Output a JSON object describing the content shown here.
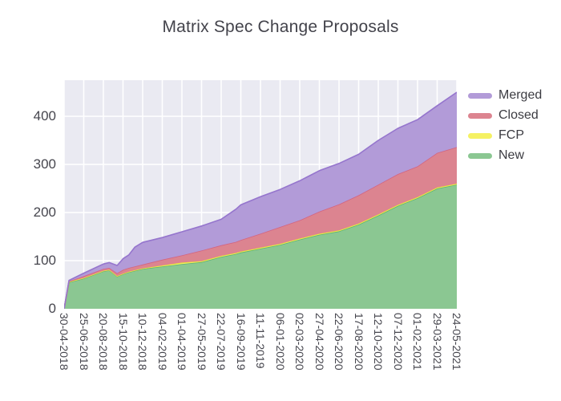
{
  "title": "Matrix Spec Change Proposals",
  "chart_data": {
    "type": "area",
    "stacked": true,
    "title": "Matrix Spec Change Proposals",
    "plot_bg": "#eaeaf2",
    "grid_color": "#ffffff",
    "grid": true,
    "legend_position": "outside-top-right",
    "xlabel": "",
    "ylabel": "",
    "xlim": [
      0,
      20
    ],
    "ylim": [
      0,
      475
    ],
    "yticks": [
      0,
      100,
      200,
      300,
      400
    ],
    "x_tick_labels": [
      "30-04-2018",
      "25-06-2018",
      "20-08-2018",
      "15-10-2018",
      "10-12-2018",
      "04-02-2019",
      "01-04-2019",
      "27-05-2019",
      "22-07-2019",
      "16-09-2019",
      "11-11-2019",
      "06-01-2020",
      "02-03-2020",
      "27-04-2020",
      "22-06-2020",
      "17-08-2020",
      "12-10-2020",
      "07-12-2020",
      "01-02-2021",
      "29-03-2021",
      "24-05-2021"
    ],
    "x": [
      0,
      0.25,
      1,
      2,
      2.3,
      2.7,
      3,
      3.3,
      3.6,
      4,
      5,
      6,
      7,
      8,
      8.75,
      9,
      10,
      11,
      12,
      13,
      14,
      15,
      16,
      17,
      18,
      19,
      20
    ],
    "series": [
      {
        "name": "New",
        "fill": "#8bc792",
        "line": "#5cb176",
        "values": [
          0,
          55,
          63,
          78,
          80,
          67,
          72,
          76,
          79,
          83,
          88,
          93,
          97,
          108,
          114,
          117,
          125,
          133,
          144,
          154,
          161,
          175,
          194,
          214,
          230,
          250,
          258
        ]
      },
      {
        "name": "FCP",
        "fill": "#f5f163",
        "line": "#e8e33a",
        "values": [
          0,
          1,
          1,
          1,
          1,
          1,
          1,
          1,
          1,
          1,
          2,
          3,
          2,
          2,
          2,
          2,
          2,
          2,
          2,
          2,
          2,
          2,
          2,
          2,
          2,
          2,
          2
        ]
      },
      {
        "name": "Closed",
        "fill": "#dc8490",
        "line": "#d36480",
        "values": [
          0,
          1,
          4,
          4,
          4,
          6,
          8,
          8,
          8,
          8,
          12,
          15,
          22,
          22,
          23,
          24,
          29,
          35,
          38,
          46,
          54,
          59,
          62,
          64,
          64,
          72,
          76
        ]
      },
      {
        "name": "Merged",
        "fill": "#b29bd8",
        "line": "#9575cd",
        "values": [
          0,
          2,
          6,
          10,
          11,
          16,
          23,
          27,
          40,
          46,
          46,
          49,
          51,
          54,
          68,
          73,
          77,
          78,
          82,
          85,
          85,
          85,
          92,
          95,
          97,
          98,
          114
        ]
      }
    ],
    "legend_items": [
      "Merged",
      "Closed",
      "FCP",
      "New"
    ]
  }
}
